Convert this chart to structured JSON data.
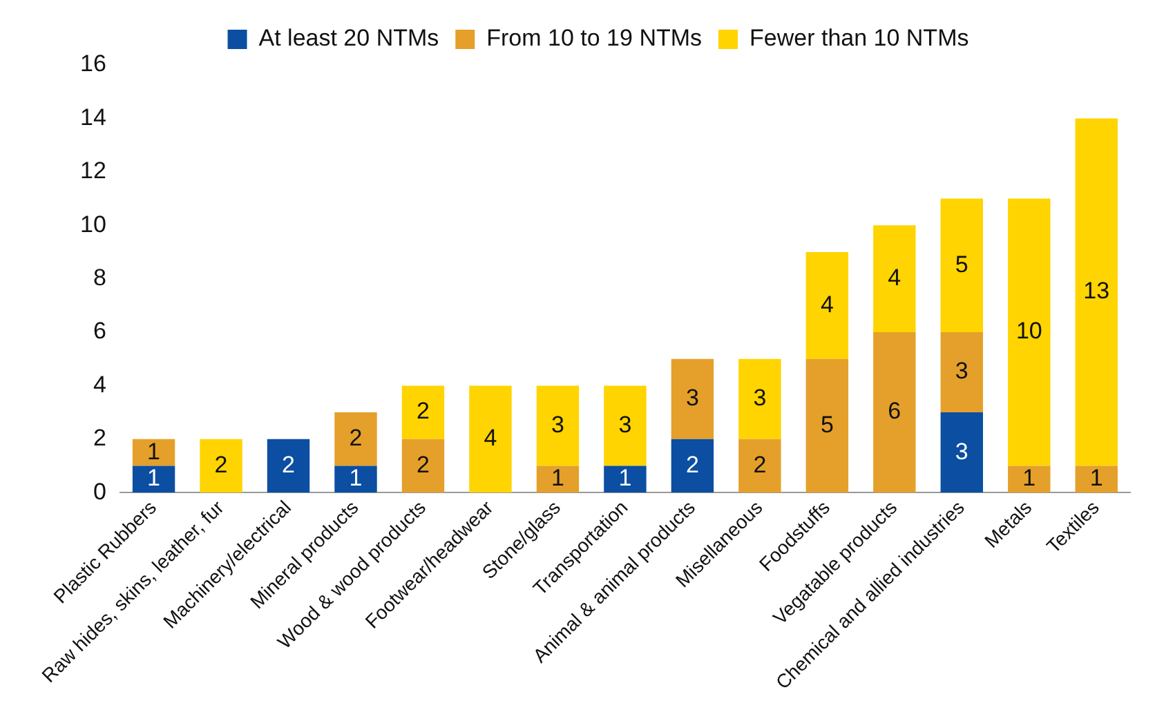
{
  "chart_data": {
    "type": "bar",
    "stacked": true,
    "categories": [
      "Plastic Rubbers",
      "Raw hides, skins, leather, fur",
      "Machinery/electrical",
      "Mineral products",
      "Wood & wood products",
      "Footwear/headwear",
      "Stone/glass",
      "Transportation",
      "Animal & animal products",
      "Misellaneous",
      "Foodstuffs",
      "Vegatable products",
      "Chemical and allied industries",
      "Metals",
      "Textiles"
    ],
    "series": [
      {
        "name": "At least 20 NTMs",
        "color": "#0b4ea2",
        "values": [
          1,
          null,
          2,
          1,
          null,
          null,
          null,
          1,
          2,
          null,
          null,
          null,
          3,
          null,
          null
        ]
      },
      {
        "name": "From 10 to 19 NTMs",
        "color": "#e4a02a",
        "values": [
          1,
          null,
          null,
          2,
          2,
          null,
          1,
          null,
          3,
          2,
          5,
          6,
          3,
          1,
          1
        ]
      },
      {
        "name": "Fewer than 10 NTMs",
        "color": "#ffd400",
        "values": [
          null,
          2,
          null,
          null,
          2,
          4,
          3,
          3,
          null,
          3,
          4,
          4,
          5,
          10,
          13
        ]
      }
    ],
    "ylim": [
      0,
      16
    ],
    "yticks": [
      0,
      2,
      4,
      6,
      8,
      10,
      12,
      14,
      16
    ],
    "grid": false,
    "legend": "top",
    "data_labels": true
  }
}
